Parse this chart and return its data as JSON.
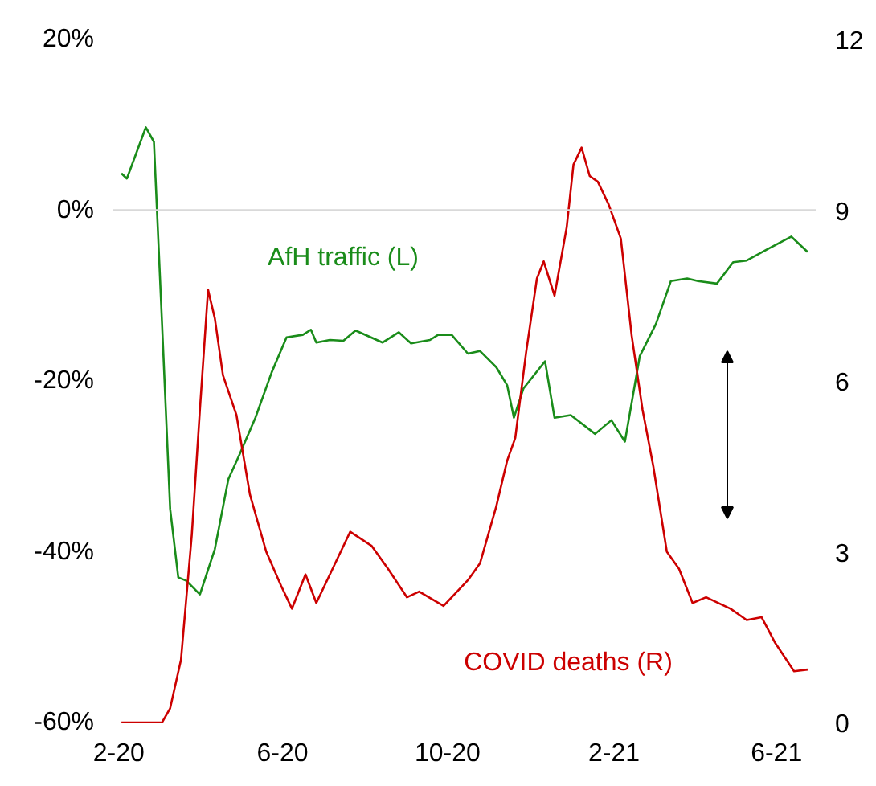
{
  "chart_data": {
    "type": "line",
    "xlim": [
      "2020-01-28",
      "2021-06-30"
    ],
    "xticks": [
      {
        "value": "2020-02-01",
        "label": "2-20"
      },
      {
        "value": "2020-06-01",
        "label": "6-20"
      },
      {
        "value": "2020-10-01",
        "label": "10-20"
      },
      {
        "value": "2021-02-01",
        "label": "2-21"
      },
      {
        "value": "2021-06-01",
        "label": "6-21"
      }
    ],
    "ylim": [
      -60,
      20
    ],
    "yticks": [
      {
        "value": -60,
        "label": "-60%"
      },
      {
        "value": -40,
        "label": "-40%"
      },
      {
        "value": -20,
        "label": "-20%"
      },
      {
        "value": 0,
        "label": "0%"
      },
      {
        "value": 20,
        "label": "20%"
      }
    ],
    "y2lim": [
      0,
      12
    ],
    "y2ticks": [
      0,
      3,
      6,
      9,
      12
    ],
    "grid": false,
    "ref_lines": [
      {
        "axis": "y",
        "value": 0,
        "color": "#d9d9d9"
      }
    ],
    "series": [
      {
        "name": "AfH traffic (L)",
        "color": "#1a8c1a",
        "axis": "y",
        "x": [
          "2020-02-03",
          "2020-02-07",
          "2020-02-21",
          "2020-02-27",
          "2020-03-04",
          "2020-03-10",
          "2020-03-16",
          "2020-03-22",
          "2020-04-01",
          "2020-04-12",
          "2020-04-22",
          "2020-04-30",
          "2020-05-12",
          "2020-05-24",
          "2020-06-04",
          "2020-06-16",
          "2020-06-22",
          "2020-06-26",
          "2020-07-06",
          "2020-07-16",
          "2020-07-25",
          "2020-08-14",
          "2020-08-26",
          "2020-09-04",
          "2020-09-18",
          "2020-09-24",
          "2020-10-04",
          "2020-10-16",
          "2020-10-25",
          "2020-11-06",
          "2020-11-14",
          "2020-11-19",
          "2020-11-26",
          "2020-12-12",
          "2020-12-19",
          "2020-12-31",
          "2021-01-18",
          "2021-01-30",
          "2021-02-09",
          "2021-02-20",
          "2021-03-04",
          "2021-03-15",
          "2021-03-27",
          "2021-04-04",
          "2021-04-18",
          "2021-04-30",
          "2021-05-10",
          "2021-05-25",
          "2021-06-12",
          "2021-06-24"
        ],
        "values": [
          4.3,
          3.7,
          9.7,
          8,
          -13.3,
          -35,
          -43,
          -43.4,
          -45,
          -39.7,
          -31.5,
          -28.7,
          -24.3,
          -19,
          -14.9,
          -14.6,
          -14,
          -15.5,
          -15.2,
          -15.3,
          -14.1,
          -15.5,
          -14.3,
          -15.6,
          -15.2,
          -14.6,
          -14.6,
          -16.8,
          -16.5,
          -18.4,
          -20.5,
          -24.3,
          -20.9,
          -17.7,
          -24.3,
          -24,
          -26.2,
          -24.6,
          -27.1,
          -17.1,
          -13.3,
          -8.3,
          -8,
          -8.3,
          -8.6,
          -6.1,
          -5.9,
          -4.6,
          -3.1,
          -4.9
        ]
      },
      {
        "name": "COVID deaths (R)",
        "color": "#cc0000",
        "axis": "y2",
        "x": [
          "2020-02-03",
          "2020-03-04",
          "2020-03-10",
          "2020-03-18",
          "2020-03-26",
          "2020-04-01",
          "2020-04-07",
          "2020-04-12",
          "2020-04-18",
          "2020-04-28",
          "2020-05-08",
          "2020-05-20",
          "2020-05-31",
          "2020-06-08",
          "2020-06-18",
          "2020-06-26",
          "2020-07-08",
          "2020-07-21",
          "2020-08-06",
          "2020-08-18",
          "2020-09-01",
          "2020-09-10",
          "2020-09-28",
          "2020-10-16",
          "2020-10-25",
          "2020-11-06",
          "2020-11-14",
          "2020-11-20",
          "2020-11-28",
          "2020-12-06",
          "2020-12-11",
          "2020-12-19",
          "2020-12-28",
          "2021-01-02",
          "2021-01-08",
          "2021-01-14",
          "2021-01-20",
          "2021-01-28",
          "2021-02-06",
          "2021-02-14",
          "2021-02-22",
          "2021-03-02",
          "2021-03-12",
          "2021-03-21",
          "2021-03-31",
          "2021-04-10",
          "2021-04-28",
          "2021-05-10",
          "2021-05-21",
          "2021-05-31",
          "2021-06-14",
          "2021-06-24"
        ],
        "values": [
          0,
          0,
          0.25,
          1.1,
          3.3,
          5.5,
          7.6,
          7.1,
          6.1,
          5.4,
          4,
          3,
          2.4,
          2,
          2.6,
          2.1,
          2.7,
          3.35,
          3.1,
          2.7,
          2.2,
          2.3,
          2.05,
          2.5,
          2.8,
          3.8,
          4.6,
          5,
          6.5,
          7.8,
          8.1,
          7.5,
          8.7,
          9.8,
          10.1,
          9.6,
          9.5,
          9.1,
          8.5,
          6.8,
          5.5,
          4.5,
          3,
          2.7,
          2.1,
          2.2,
          2,
          1.8,
          1.85,
          1.4,
          0.9,
          0.93
        ]
      }
    ]
  }
}
